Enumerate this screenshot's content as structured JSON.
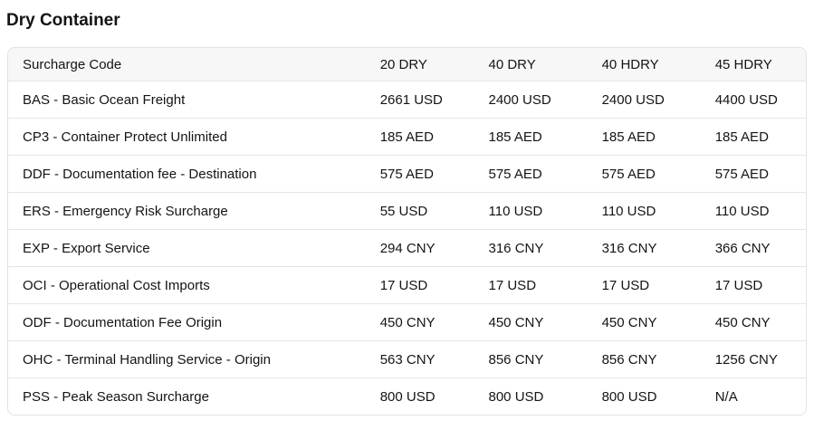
{
  "page": {
    "title": "Dry Container"
  },
  "table": {
    "columns": [
      "Surcharge Code",
      "20 DRY",
      "40 DRY",
      "40 HDRY",
      "45 HDRY"
    ],
    "rows": [
      {
        "label": "BAS - Basic Ocean Freight",
        "values": [
          "2661 USD",
          "2400 USD",
          "2400 USD",
          "4400 USD"
        ]
      },
      {
        "label": "CP3 - Container Protect Unlimited",
        "values": [
          "185 AED",
          "185 AED",
          "185 AED",
          "185 AED"
        ]
      },
      {
        "label": "DDF - Documentation fee - Destination",
        "values": [
          "575 AED",
          "575 AED",
          "575 AED",
          "575 AED"
        ]
      },
      {
        "label": "ERS - Emergency Risk Surcharge",
        "values": [
          "55 USD",
          "110 USD",
          "110 USD",
          "110 USD"
        ]
      },
      {
        "label": "EXP - Export Service",
        "values": [
          "294 CNY",
          "316 CNY",
          "316 CNY",
          "366 CNY"
        ]
      },
      {
        "label": "OCI - Operational Cost Imports",
        "values": [
          "17 USD",
          "17 USD",
          "17 USD",
          "17 USD"
        ]
      },
      {
        "label": "ODF - Documentation Fee Origin",
        "values": [
          "450 CNY",
          "450 CNY",
          "450 CNY",
          "450 CNY"
        ]
      },
      {
        "label": "OHC - Terminal Handling Service - Origin",
        "values": [
          "563 CNY",
          "856 CNY",
          "856 CNY",
          "1256 CNY"
        ]
      },
      {
        "label": "PSS - Peak Season Surcharge",
        "values": [
          "800 USD",
          "800 USD",
          "800 USD",
          "N/A"
        ]
      }
    ]
  },
  "colors": {
    "text": "#141414",
    "header_background": "#f7f7f7",
    "border": "#e3e3e3",
    "row_divider": "#e6e6e6"
  }
}
